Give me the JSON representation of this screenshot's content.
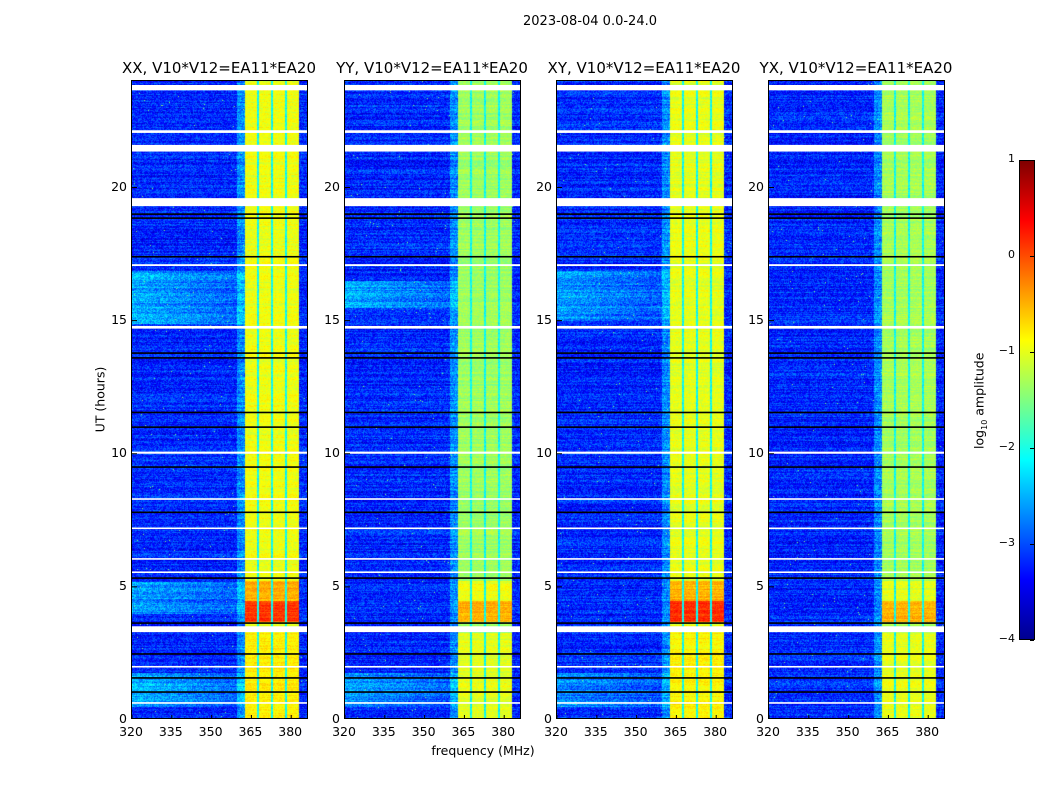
{
  "suptitle": "2023-08-04 0.0-24.0",
  "chart_data": {
    "type": "heatmap",
    "xlabel": "frequency (MHz)",
    "ylabel": "UT (hours)",
    "xlim": [
      320,
      386.7
    ],
    "ylim": [
      0,
      24
    ],
    "xticks": [
      "320",
      "335",
      "350",
      "365",
      "380"
    ],
    "xtick_values": [
      320,
      335,
      350,
      365,
      380
    ],
    "yticks": [
      "0",
      "5",
      "10",
      "15",
      "20"
    ],
    "ytick_values": [
      0,
      5,
      10,
      15,
      20
    ],
    "colorbar": {
      "label": "log10 amplitude",
      "label_main": "log",
      "label_sub": "10",
      "label_rest": " amplitude",
      "range": [
        -4,
        1
      ],
      "ticks": [
        "1",
        "0",
        "−1",
        "−2",
        "−3",
        "−4"
      ],
      "tick_values": [
        1,
        0,
        -1,
        -2,
        -3,
        -4
      ],
      "colormap": "jet"
    },
    "background_level": -3.2,
    "band_mhz": [
      362.3,
      382.6
    ],
    "subband_gaps_mhz": [
      [
        366.8,
        367.6
      ],
      [
        372.1,
        372.9
      ],
      [
        377.4,
        378.2
      ]
    ],
    "flagged_hours_white": [
      [
        23.65,
        23.85
      ],
      [
        22.05,
        22.15
      ],
      [
        21.35,
        21.6
      ],
      [
        19.3,
        19.6
      ],
      [
        17.05,
        17.12
      ],
      [
        14.7,
        14.8
      ],
      [
        10.0,
        10.08
      ],
      [
        8.27,
        8.33
      ],
      [
        7.17,
        7.23
      ],
      [
        6.02,
        6.08
      ],
      [
        5.52,
        5.58
      ],
      [
        3.3,
        3.52
      ],
      [
        1.97,
        2.03
      ],
      [
        0.61,
        0.67
      ]
    ],
    "dropout_hours_black": [
      [
        18.97,
        19.03
      ],
      [
        18.82,
        18.88
      ],
      [
        17.37,
        17.43
      ],
      [
        13.75,
        13.81
      ],
      [
        13.57,
        13.63
      ],
      [
        11.52,
        11.58
      ],
      [
        10.97,
        11.03
      ],
      [
        9.47,
        9.53
      ],
      [
        7.77,
        7.83
      ],
      [
        5.3,
        5.36
      ],
      [
        3.61,
        3.67
      ],
      [
        2.45,
        2.51
      ],
      [
        1.55,
        1.61
      ],
      [
        1.02,
        1.08
      ]
    ],
    "panels": [
      {
        "title": "XX, V10*V12=EA11*EA20",
        "band_level": -0.95,
        "band_peak": [
          [
            3.7,
            4.5,
            0.1
          ],
          [
            4.5,
            5.25,
            -0.5
          ],
          [
            0,
            3.3,
            -0.8
          ]
        ],
        "low_freq_enhanced": [
          [
            0.5,
            1.8,
            -2.5
          ],
          [
            14.9,
            16.9,
            -2.5
          ],
          [
            4.0,
            5.2,
            -2.6
          ]
        ]
      },
      {
        "title": "YY, V10*V12=EA11*EA20",
        "band_level": -1.35,
        "band_peak": [
          [
            3.7,
            4.5,
            -0.5
          ],
          [
            4.5,
            5.25,
            -0.95
          ],
          [
            0,
            3.3,
            -1.0
          ]
        ],
        "low_freq_enhanced": [
          [
            0.5,
            1.8,
            -2.6
          ],
          [
            15.5,
            16.5,
            -2.5
          ]
        ]
      },
      {
        "title": "XY, V10*V12=EA11*EA20",
        "band_level": -1.0,
        "band_peak": [
          [
            3.7,
            4.5,
            0.15
          ],
          [
            4.5,
            5.25,
            -0.5
          ],
          [
            0,
            3.3,
            -0.85
          ]
        ],
        "low_freq_enhanced": [
          [
            0.5,
            1.8,
            -2.7
          ],
          [
            15.0,
            16.9,
            -2.6
          ]
        ]
      },
      {
        "title": "YX, V10*V12=EA11*EA20",
        "band_level": -1.3,
        "band_peak": [
          [
            3.7,
            4.5,
            -0.5
          ],
          [
            4.5,
            5.25,
            -1.0
          ],
          [
            0,
            3.3,
            -1.0
          ]
        ],
        "low_freq_enhanced": []
      }
    ]
  }
}
